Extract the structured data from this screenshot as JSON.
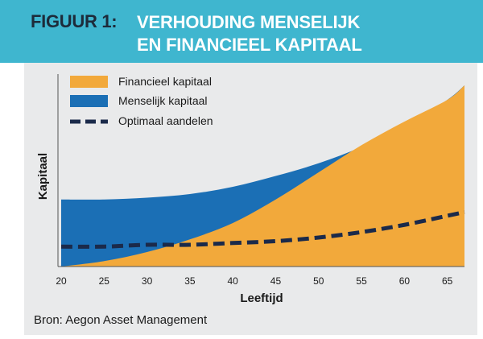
{
  "figure": {
    "label": "FIGUUR 1:",
    "title_line1": "VERHOUDING MENSELIJK",
    "title_line2": "EN FINANCIEEL KAPITAAL",
    "source": "Bron: Aegon Asset Management"
  },
  "colors": {
    "banner": "#3fb6cf",
    "banner_shadow": "#1f5f73",
    "panel": "#e9eaeb",
    "financial": "#f2a93b",
    "human": "#1b6fb5",
    "optimal": "#1b2a4a"
  },
  "chart_data": {
    "type": "area",
    "xlabel": "Leeftijd",
    "ylabel": "Kapitaal",
    "xlim": [
      20,
      67
    ],
    "ylim": [
      0,
      100
    ],
    "xticks": [
      20,
      25,
      30,
      35,
      40,
      45,
      50,
      55,
      60,
      65
    ],
    "grid": false,
    "legend_position": "top-left",
    "x": [
      20,
      25,
      30,
      35,
      40,
      45,
      50,
      55,
      60,
      65,
      67
    ],
    "series": [
      {
        "name": "Financieel kapitaal",
        "kind": "area",
        "values": [
          0,
          3,
          8,
          15,
          24,
          37,
          52,
          67,
          80,
          92,
          100
        ]
      },
      {
        "name": "Menselijk kapitaal",
        "kind": "area",
        "values": [
          37,
          37,
          38,
          40,
          44,
          50,
          57,
          66,
          77,
          92,
          100
        ]
      },
      {
        "name": "Optimaal aandelen",
        "kind": "dashed-line",
        "values": [
          11,
          11,
          12,
          12,
          13,
          14,
          16,
          19,
          23,
          28,
          30
        ]
      }
    ]
  }
}
